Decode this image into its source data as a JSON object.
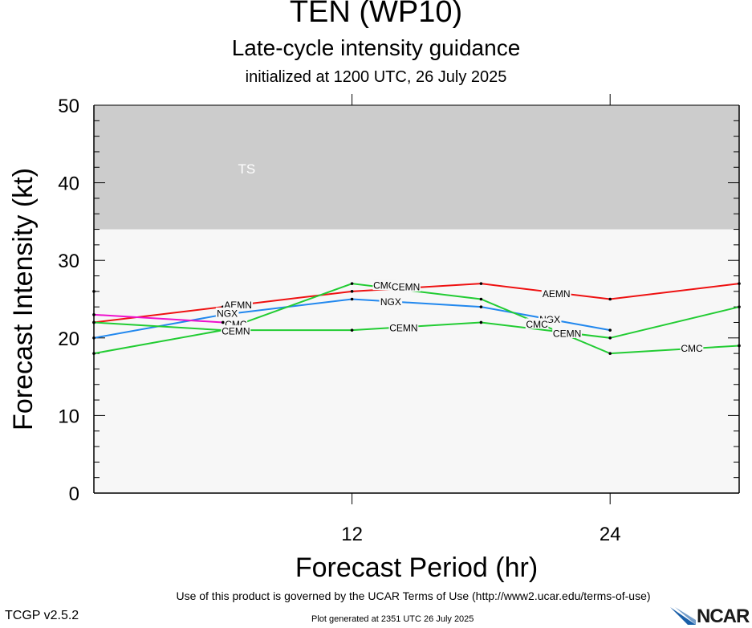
{
  "header": {
    "title": "TEN (WP10)",
    "subtitle": "Late-cycle intensity guidance",
    "init_line": "initialized at 1200 UTC, 26 July 2025"
  },
  "chart_data": {
    "type": "line",
    "xlabel": "Forecast Period (hr)",
    "ylabel": "Forecast Intensity (kt)",
    "xlim": [
      -12,
      18
    ],
    "ylim": [
      0,
      50
    ],
    "x_ticks": [
      0,
      12
    ],
    "x_tick_labels": [
      "12",
      "24"
    ],
    "y_ticks": [
      0,
      10,
      20,
      30,
      40,
      50
    ],
    "y_tick_labels": [
      "0",
      "10",
      "20",
      "30",
      "40",
      "50"
    ],
    "bands": [
      {
        "label": "TS",
        "from": 34,
        "to": 50,
        "color": "#cccccc"
      }
    ],
    "plot_background": "#f7f7f7",
    "orphan_points": [
      {
        "x": -12,
        "y": 26
      }
    ],
    "series": [
      {
        "name": "AEMN",
        "color": "#ee1111",
        "x": [
          -12,
          -6,
          0,
          6,
          12,
          18
        ],
        "y": [
          22,
          24,
          26,
          27,
          25,
          27
        ],
        "labels": [
          {
            "x": -5.3,
            "y": 24.3
          },
          {
            "x": 9.5,
            "y": 25.7
          }
        ]
      },
      {
        "name": "NGX",
        "color": "#2288ee",
        "x": [
          -12,
          -6,
          0,
          6,
          12
        ],
        "y": [
          20,
          23,
          25,
          24,
          21
        ],
        "labels": [
          {
            "x": -5.8,
            "y": 23.2
          },
          {
            "x": 1.8,
            "y": 24.7
          },
          {
            "x": 9.2,
            "y": 22.4
          }
        ]
      },
      {
        "name": "CMC",
        "color": "#22cc33",
        "x": [
          -12,
          -6,
          0,
          6,
          12,
          18
        ],
        "y": [
          18,
          21,
          27,
          25,
          18,
          19
        ],
        "labels": [
          {
            "x": -5.4,
            "y": 21.8
          },
          {
            "x": 1.5,
            "y": 26.8
          },
          {
            "x": 8.6,
            "y": 21.8
          },
          {
            "x": 15.8,
            "y": 18.7
          }
        ]
      },
      {
        "name": "CEMN",
        "color": "#22cc33",
        "x": [
          -12,
          -6,
          0,
          6,
          12,
          18
        ],
        "y": [
          22,
          21,
          21,
          22,
          20,
          24
        ],
        "labels": [
          {
            "x": -5.4,
            "y": 20.9
          },
          {
            "x": 2.4,
            "y": 21.3
          },
          {
            "x": 2.5,
            "y": 26.6
          },
          {
            "x": 10.0,
            "y": 20.6
          }
        ]
      },
      {
        "name": "",
        "color": "#ee11cc",
        "x": [
          -12,
          -6
        ],
        "y": [
          23,
          22
        ],
        "labels": []
      }
    ]
  },
  "footer": {
    "terms": "Use of this product is governed by the UCAR Terms of Use (http://www2.ucar.edu/terms-of-use)",
    "version": "TCGP v2.5.2",
    "generated": "Plot generated at 2351 UTC   26 July 2025",
    "logo_text": "NCAR",
    "logo_color": "#1a5fa8"
  }
}
